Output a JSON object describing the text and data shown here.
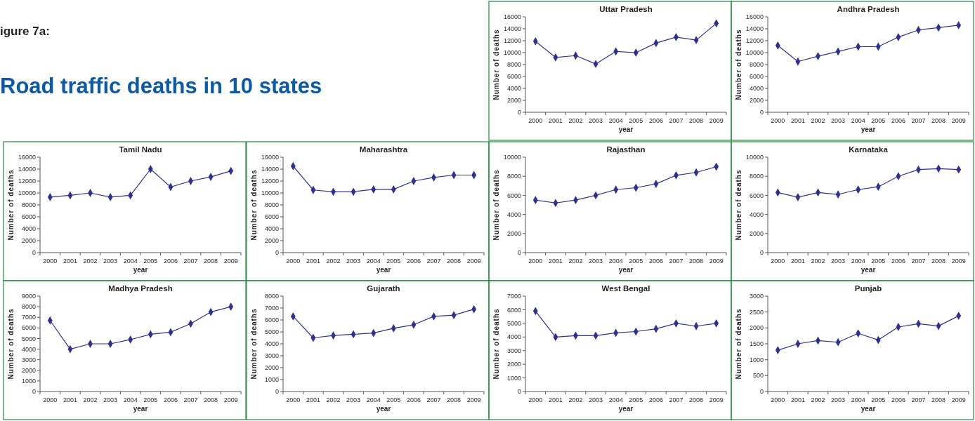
{
  "chart_data": [
    {
      "type": "other",
      "title": "Road traffic deaths in 10 states",
      "subtitle": "igure 7a:"
    },
    {
      "type": "line",
      "title": "Uttar Pradesh",
      "xlabel": "year",
      "ylabel": "Number of deaths",
      "categories": [
        "2000",
        "2001",
        "2002",
        "2003",
        "2004",
        "2005",
        "2006",
        "2007",
        "2008",
        "2009"
      ],
      "series": [
        {
          "color": "#2e3192",
          "values": [
            11900,
            9200,
            9500,
            8100,
            10200,
            10000,
            11600,
            12600,
            12100,
            14900
          ]
        }
      ],
      "ylim": [
        0,
        16000
      ],
      "yticks": [
        0,
        2000,
        4000,
        6000,
        8000,
        10000,
        12000,
        14000,
        16000
      ],
      "marker": "diamond",
      "line_style": "solid",
      "grid": false
    },
    {
      "type": "line",
      "title": "Andhra Pradesh",
      "xlabel": "year",
      "ylabel": "Number of deaths",
      "categories": [
        "2000",
        "2001",
        "2002",
        "2003",
        "2004",
        "2005",
        "2006",
        "2007",
        "2008",
        "2009"
      ],
      "series": [
        {
          "color": "#2e3192",
          "values": [
            11200,
            8500,
            9400,
            10200,
            11000,
            11000,
            12600,
            13800,
            14200,
            14600
          ]
        }
      ],
      "ylim": [
        0,
        16000
      ],
      "yticks": [
        0,
        2000,
        4000,
        6000,
        8000,
        10000,
        12000,
        14000,
        16000
      ],
      "marker": "diamond",
      "line_style": "solid",
      "grid": false
    },
    {
      "type": "line",
      "title": "Tamil Nadu",
      "xlabel": "year",
      "ylabel": "Number of deaths",
      "categories": [
        "2000",
        "2001",
        "2002",
        "2003",
        "2004",
        "2005",
        "2006",
        "2007",
        "2008",
        "2009"
      ],
      "series": [
        {
          "color": "#2e3192",
          "values": [
            9300,
            9600,
            10000,
            9300,
            9600,
            14000,
            11000,
            12000,
            12700,
            13700
          ]
        }
      ],
      "ylim": [
        0,
        16000
      ],
      "yticks": [
        0,
        2000,
        4000,
        6000,
        8000,
        10000,
        12000,
        14000,
        16000
      ],
      "marker": "diamond",
      "line_style": "solid",
      "grid": false
    },
    {
      "type": "line",
      "title": "Maharashtra",
      "xlabel": "year",
      "ylabel": "Number of deaths",
      "categories": [
        "2000",
        "2001",
        "2002",
        "2003",
        "2004",
        "2005",
        "2006",
        "2007",
        "2008",
        "2009"
      ],
      "series": [
        {
          "color": "#2e3192",
          "values": [
            14500,
            10500,
            10200,
            10200,
            10600,
            10600,
            12000,
            12600,
            13000,
            13000
          ]
        }
      ],
      "ylim": [
        0,
        16000
      ],
      "yticks": [
        0,
        2000,
        4000,
        6000,
        8000,
        10000,
        12000,
        14000,
        16000
      ],
      "marker": "diamond",
      "line_style": "solid",
      "grid": false
    },
    {
      "type": "line",
      "title": "Rajasthan",
      "xlabel": "year",
      "ylabel": "Number of deaths",
      "categories": [
        "2000",
        "2001",
        "2002",
        "2003",
        "2004",
        "2005",
        "2006",
        "2007",
        "2008",
        "2009"
      ],
      "series": [
        {
          "color": "#2e3192",
          "values": [
            5500,
            5200,
            5500,
            6000,
            6600,
            6800,
            7200,
            8100,
            8400,
            9000
          ]
        }
      ],
      "ylim": [
        0,
        10000
      ],
      "yticks": [
        0,
        2000,
        4000,
        6000,
        8000,
        10000
      ],
      "marker": "diamond",
      "line_style": "solid",
      "grid": false
    },
    {
      "type": "line",
      "title": "Karnataka",
      "xlabel": "year",
      "ylabel": "Number of deaths",
      "categories": [
        "2000",
        "2001",
        "2002",
        "2003",
        "2004",
        "2005",
        "2006",
        "2007",
        "2008",
        "2009"
      ],
      "series": [
        {
          "color": "#2e3192",
          "values": [
            6300,
            5800,
            6300,
            6100,
            6600,
            6900,
            8000,
            8700,
            8800,
            8700
          ]
        }
      ],
      "ylim": [
        0,
        10000
      ],
      "yticks": [
        0,
        2000,
        4000,
        6000,
        8000,
        10000
      ],
      "marker": "diamond",
      "line_style": "solid",
      "grid": false
    },
    {
      "type": "line",
      "title": "Madhya Pradesh",
      "xlabel": "year",
      "ylabel": "Number of deaths",
      "categories": [
        "2000",
        "2001",
        "2002",
        "2003",
        "2004",
        "2005",
        "2006",
        "2007",
        "2008",
        "2009"
      ],
      "series": [
        {
          "color": "#2e3192",
          "values": [
            6700,
            4000,
            4500,
            4500,
            4900,
            5400,
            5600,
            6400,
            7500,
            8000
          ]
        }
      ],
      "ylim": [
        0,
        9000
      ],
      "yticks": [
        0,
        1000,
        2000,
        3000,
        4000,
        5000,
        6000,
        7000,
        8000,
        9000
      ],
      "marker": "diamond",
      "line_style": "solid",
      "grid": false
    },
    {
      "type": "line",
      "title": "Gujarath",
      "xlabel": "year",
      "ylabel": "Number of deaths",
      "categories": [
        "2000",
        "2001",
        "2002",
        "2003",
        "2004",
        "2005",
        "2006",
        "2007",
        "2008",
        "2009"
      ],
      "series": [
        {
          "color": "#2e3192",
          "values": [
            6300,
            4500,
            4700,
            4800,
            4900,
            5300,
            5600,
            6300,
            6400,
            6900
          ]
        }
      ],
      "ylim": [
        0,
        8000
      ],
      "yticks": [
        0,
        1000,
        2000,
        3000,
        4000,
        5000,
        6000,
        7000,
        8000
      ],
      "marker": "diamond",
      "line_style": "solid",
      "grid": false
    },
    {
      "type": "line",
      "title": "West Bengal",
      "xlabel": "year",
      "ylabel": "Number of deaths",
      "categories": [
        "2000",
        "2001",
        "2002",
        "2003",
        "2004",
        "2005",
        "2006",
        "2007",
        "2008",
        "2009"
      ],
      "series": [
        {
          "color": "#2e3192",
          "values": [
            5900,
            4000,
            4100,
            4100,
            4300,
            4400,
            4600,
            5000,
            4800,
            5000
          ]
        }
      ],
      "ylim": [
        0,
        7000
      ],
      "yticks": [
        0,
        1000,
        2000,
        3000,
        4000,
        5000,
        6000,
        7000
      ],
      "marker": "diamond",
      "line_style": "solid",
      "grid": false
    },
    {
      "type": "line",
      "title": "Punjab",
      "xlabel": "year",
      "ylabel": "Number of deaths",
      "categories": [
        "2000",
        "2001",
        "2002",
        "2003",
        "2004",
        "2005",
        "2006",
        "2007",
        "2008",
        "2009"
      ],
      "series": [
        {
          "color": "#2e3192",
          "values": [
            1300,
            1500,
            1600,
            1550,
            1830,
            1620,
            2030,
            2130,
            2060,
            2380
          ]
        }
      ],
      "ylim": [
        0,
        3000
      ],
      "yticks": [
        0,
        500,
        1000,
        1500,
        2000,
        2500,
        3000
      ],
      "marker": "diamond",
      "line_style": "solid",
      "grid": false
    }
  ]
}
